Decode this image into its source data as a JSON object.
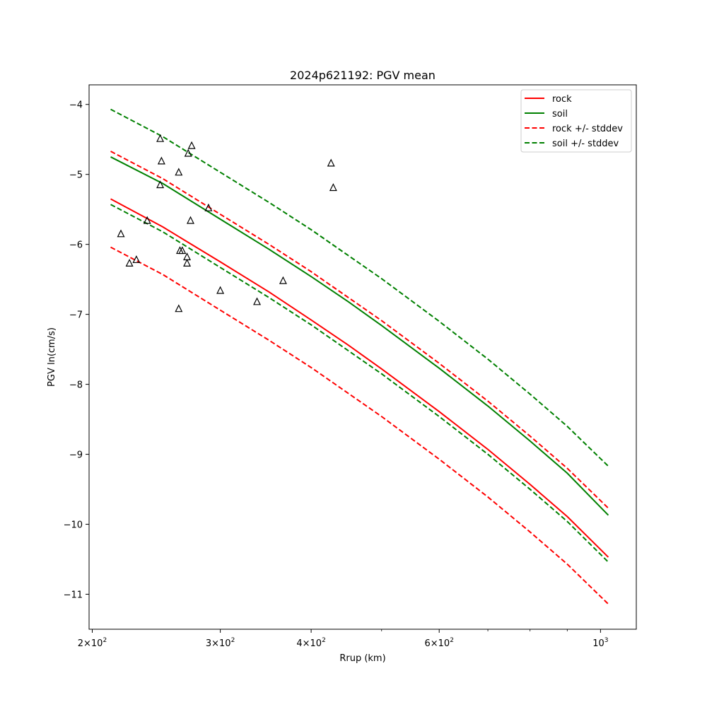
{
  "chart_data": {
    "type": "line",
    "title": "2024p621192: PGV mean",
    "xlabel": "Rrup (km)",
    "ylabel": "PGV ln(cm/s)",
    "x_scale": "log",
    "xlim": [
      198,
      1120
    ],
    "ylim": [
      -11.5,
      -3.72
    ],
    "grid": false,
    "legend_position": "top-right",
    "x_ticks": [
      {
        "value": 200,
        "label": "2×10²"
      },
      {
        "value": 300,
        "label": "3×10²"
      },
      {
        "value": 400,
        "label": "4×10²"
      },
      {
        "value": 600,
        "label": "6×10²"
      },
      {
        "value": 1000,
        "label": "10³"
      }
    ],
    "x_minor_ticks": [
      500,
      700,
      800,
      900
    ],
    "y_ticks": [
      {
        "value": -4,
        "label": "−4"
      },
      {
        "value": -5,
        "label": "−5"
      },
      {
        "value": -6,
        "label": "−6"
      },
      {
        "value": -7,
        "label": "−7"
      },
      {
        "value": -8,
        "label": "−8"
      },
      {
        "value": -9,
        "label": "−9"
      },
      {
        "value": -10,
        "label": "−10"
      },
      {
        "value": -11,
        "label": "−11"
      }
    ],
    "series": [
      {
        "name": "rock",
        "color": "#ff0000",
        "dash": "solid",
        "x": [
          212,
          250,
          300,
          350,
          400,
          450,
          500,
          600,
          700,
          800,
          900,
          1025
        ],
        "y": [
          -5.35,
          -5.75,
          -6.25,
          -6.68,
          -7.08,
          -7.44,
          -7.78,
          -8.39,
          -8.93,
          -9.43,
          -9.89,
          -10.47
        ]
      },
      {
        "name": "soil",
        "color": "#008000",
        "dash": "solid",
        "x": [
          212,
          250,
          300,
          350,
          400,
          450,
          500,
          600,
          700,
          800,
          900,
          1025
        ],
        "y": [
          -4.75,
          -5.13,
          -5.64,
          -6.07,
          -6.46,
          -6.82,
          -7.16,
          -7.77,
          -8.31,
          -8.81,
          -9.27,
          -9.87
        ]
      },
      {
        "name": "rock +/- stddev",
        "color": "#ff0000",
        "dash": "dashed",
        "x": [
          212,
          250,
          300,
          350,
          400,
          450,
          500,
          600,
          700,
          800,
          900,
          1025
        ],
        "y": [
          -4.67,
          -5.06,
          -5.57,
          -6.0,
          -6.39,
          -6.76,
          -7.09,
          -7.7,
          -8.24,
          -8.74,
          -9.2,
          -9.77
        ]
      },
      {
        "name": "rock +/- stddev",
        "color": "#ff0000",
        "dash": "dashed",
        "legend": false,
        "x": [
          212,
          250,
          300,
          350,
          400,
          450,
          500,
          600,
          700,
          800,
          900,
          1025
        ],
        "y": [
          -6.04,
          -6.43,
          -6.94,
          -7.37,
          -7.76,
          -8.13,
          -8.46,
          -9.07,
          -9.61,
          -10.11,
          -10.57,
          -11.14
        ]
      },
      {
        "name": "soil +/- stddev",
        "color": "#008000",
        "dash": "dashed",
        "x": [
          212,
          250,
          300,
          350,
          400,
          450,
          500,
          600,
          700,
          800,
          900,
          1025
        ],
        "y": [
          -4.07,
          -4.46,
          -4.97,
          -5.4,
          -5.79,
          -6.16,
          -6.49,
          -7.1,
          -7.64,
          -8.14,
          -8.6,
          -9.17
        ]
      },
      {
        "name": "soil +/- stddev",
        "color": "#008000",
        "dash": "dashed",
        "legend": false,
        "x": [
          212,
          250,
          300,
          350,
          400,
          450,
          500,
          600,
          700,
          800,
          900,
          1025
        ],
        "y": [
          -5.43,
          -5.82,
          -6.33,
          -6.76,
          -7.15,
          -7.52,
          -7.85,
          -8.46,
          -9.0,
          -9.5,
          -9.96,
          -10.54
        ]
      }
    ],
    "observations": {
      "marker": "triangle",
      "points": [
        {
          "x": 219,
          "y": -5.85
        },
        {
          "x": 225,
          "y": -6.27
        },
        {
          "x": 230,
          "y": -6.22
        },
        {
          "x": 238,
          "y": -5.66
        },
        {
          "x": 248,
          "y": -4.49
        },
        {
          "x": 249,
          "y": -4.81
        },
        {
          "x": 248,
          "y": -5.15
        },
        {
          "x": 263,
          "y": -4.97
        },
        {
          "x": 264,
          "y": -6.09
        },
        {
          "x": 266,
          "y": -6.09
        },
        {
          "x": 263,
          "y": -6.92
        },
        {
          "x": 270,
          "y": -6.18
        },
        {
          "x": 270,
          "y": -6.27
        },
        {
          "x": 271,
          "y": -4.7
        },
        {
          "x": 274,
          "y": -4.59
        },
        {
          "x": 273,
          "y": -5.66
        },
        {
          "x": 289,
          "y": -5.48
        },
        {
          "x": 300,
          "y": -6.66
        },
        {
          "x": 337,
          "y": -6.82
        },
        {
          "x": 366,
          "y": -6.52
        },
        {
          "x": 426,
          "y": -4.84
        },
        {
          "x": 429,
          "y": -5.19
        }
      ]
    }
  }
}
